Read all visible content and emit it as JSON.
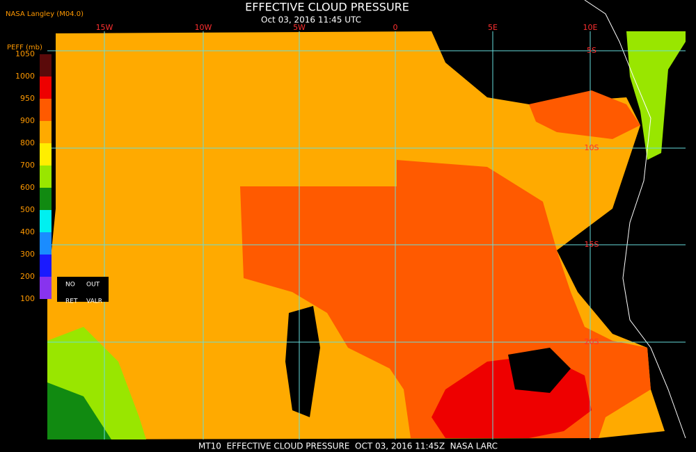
{
  "header": {
    "title": "EFFECTIVE CLOUD PRESSURE",
    "subtitle": "Oct 03, 2016 11:45 UTC",
    "source": "NASA Langley (M04.0)"
  },
  "legend": {
    "title": "PEFF (mb)",
    "labels": [
      1050,
      1000,
      950,
      900,
      800,
      700,
      600,
      500,
      400,
      300,
      200,
      100
    ],
    "colors": [
      "#5a0a0a",
      "#ee0000",
      "#ff5a00",
      "#ffaa00",
      "#ffee00",
      "#99e600",
      "#118a11",
      "#00f0f0",
      "#1a8cff",
      "#1a1aff",
      "#8833ee"
    ],
    "notes": [
      "NO",
      "OUT",
      "RET",
      "VALR"
    ]
  },
  "map": {
    "longitudes": [
      "15W",
      "10W",
      "5W",
      "0",
      "5E",
      "10E"
    ],
    "latitudes": [
      "5S",
      "10S",
      "15S",
      "20S"
    ]
  },
  "footer": "MT10  EFFECTIVE CLOUD PRESSURE  OCT 03, 2016 11:45Z  NASA LARC"
}
